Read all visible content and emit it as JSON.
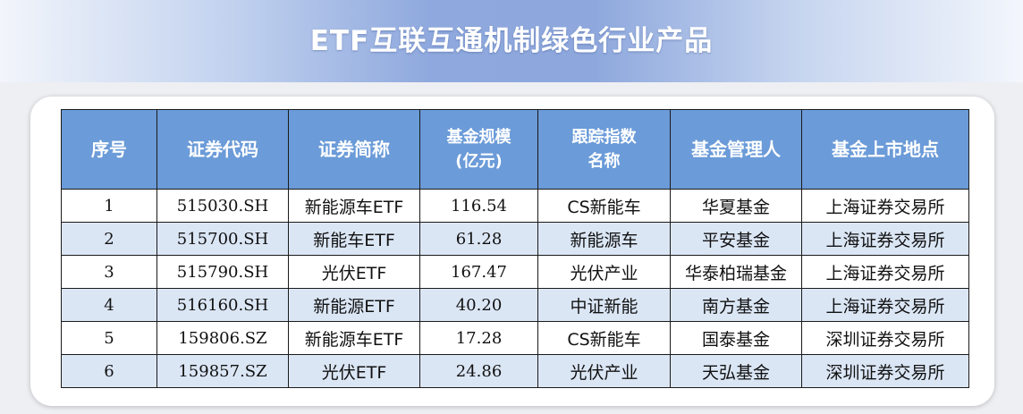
{
  "title": "ETF互联互通机制绿色行业产品",
  "table": {
    "headers": {
      "seq": "序号",
      "code": "证券代码",
      "short_name": "证券简称",
      "size_line1": "基金规模",
      "size_line2": "(亿元)",
      "index_line1": "跟踪指数",
      "index_line2": "名称",
      "manager": "基金管理人",
      "venue": "基金上市地点"
    },
    "rows": [
      {
        "seq": "1",
        "code": "515030.SH",
        "name": "新能源车ETF",
        "size": "116.54",
        "index": "CS新能车",
        "manager": "华夏基金",
        "venue": "上海证券交易所"
      },
      {
        "seq": "2",
        "code": "515700.SH",
        "name": "新能车ETF",
        "size": "61.28",
        "index": "新能源车",
        "manager": "平安基金",
        "venue": "上海证券交易所"
      },
      {
        "seq": "3",
        "code": "515790.SH",
        "name": "光伏ETF",
        "size": "167.47",
        "index": "光伏产业",
        "manager": "华泰柏瑞基金",
        "venue": "上海证券交易所"
      },
      {
        "seq": "4",
        "code": "516160.SH",
        "name": "新能源ETF",
        "size": "40.20",
        "index": "中证新能",
        "manager": "南方基金",
        "venue": "上海证券交易所"
      },
      {
        "seq": "5",
        "code": "159806.SZ",
        "name": "新能源车ETF",
        "size": "17.28",
        "index": "CS新能车",
        "manager": "国泰基金",
        "venue": "深圳证券交易所"
      },
      {
        "seq": "6",
        "code": "159857.SZ",
        "name": "光伏ETF",
        "size": "24.86",
        "index": "光伏产业",
        "manager": "天弘基金",
        "venue": "深圳证券交易所"
      }
    ]
  },
  "colors": {
    "header_bg": "#6b9bd8",
    "stripe_bg": "#dbe6f5",
    "banner_mid": "#8fa9de"
  }
}
